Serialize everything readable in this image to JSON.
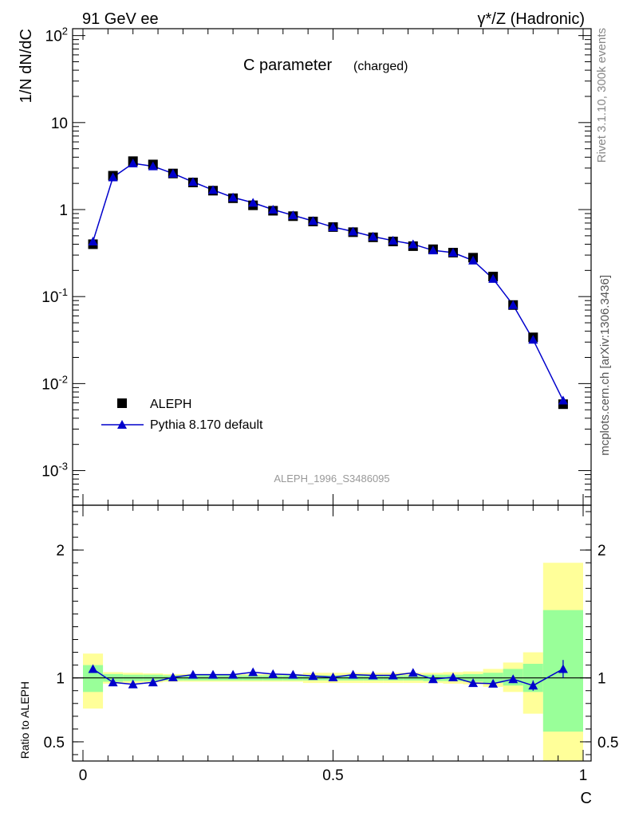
{
  "header": {
    "left": "91 GeV ee",
    "right": "γ*/Z (Hadronic)"
  },
  "side_labels": {
    "rivet": "Rivet 3.1.10,  300k events",
    "mcplots": "mcplots.cern.ch [arXiv:1306.3436]"
  },
  "chart_data": {
    "type": "line",
    "title": "C parameter",
    "title_suffix": "(charged)",
    "analysis_label": "ALEPH_1996_S3486095",
    "ylabel_main": "1/N dN/dC",
    "ylabel_ratio": "Ratio to ALEPH",
    "xlabel": "C",
    "x_ticks": [
      "0",
      "0.5",
      "1"
    ],
    "xlim": [
      0,
      1
    ],
    "main_ylim": [
      0.0004,
      120
    ],
    "main_yscale": "log",
    "main_y_ticks": [
      "10^-3",
      "10^-2",
      "10^-1",
      "1",
      "10",
      "10^2"
    ],
    "ratio_ylim": [
      0.35,
      2.35
    ],
    "ratio_y_ticks": [
      "0.5",
      "1",
      "2"
    ],
    "legend_position": "lower-left",
    "series": [
      {
        "name": "ALEPH",
        "marker": "square",
        "color": "#000000",
        "x": [
          0.02,
          0.06,
          0.1,
          0.14,
          0.18,
          0.22,
          0.26,
          0.3,
          0.34,
          0.38,
          0.42,
          0.46,
          0.5,
          0.54,
          0.58,
          0.62,
          0.66,
          0.7,
          0.74,
          0.78,
          0.82,
          0.86,
          0.9,
          0.96
        ],
        "values": [
          0.4,
          2.45,
          3.6,
          3.3,
          2.6,
          2.05,
          1.65,
          1.35,
          1.12,
          0.97,
          0.84,
          0.73,
          0.63,
          0.55,
          0.48,
          0.43,
          0.38,
          0.35,
          0.32,
          0.28,
          0.17,
          0.08,
          0.034,
          0.0058
        ]
      },
      {
        "name": "Pythia 8.170 default",
        "marker": "triangle",
        "color": "#0000cc",
        "x": [
          0.02,
          0.06,
          0.1,
          0.14,
          0.18,
          0.22,
          0.26,
          0.3,
          0.34,
          0.38,
          0.42,
          0.46,
          0.5,
          0.54,
          0.58,
          0.62,
          0.66,
          0.7,
          0.74,
          0.78,
          0.82,
          0.86,
          0.9,
          0.96
        ],
        "values": [
          0.43,
          2.35,
          3.4,
          3.15,
          2.6,
          2.08,
          1.68,
          1.38,
          1.2,
          1.0,
          0.86,
          0.74,
          0.63,
          0.56,
          0.49,
          0.44,
          0.4,
          0.34,
          0.32,
          0.26,
          0.16,
          0.08,
          0.032,
          0.0064
        ]
      }
    ],
    "ratio": {
      "bins": [
        [
          0.0,
          0.04
        ],
        [
          0.04,
          0.08
        ],
        [
          0.08,
          0.12
        ],
        [
          0.12,
          0.16
        ],
        [
          0.16,
          0.2
        ],
        [
          0.2,
          0.24
        ],
        [
          0.24,
          0.28
        ],
        [
          0.28,
          0.32
        ],
        [
          0.32,
          0.36
        ],
        [
          0.36,
          0.4
        ],
        [
          0.4,
          0.44
        ],
        [
          0.44,
          0.48
        ],
        [
          0.48,
          0.52
        ],
        [
          0.52,
          0.56
        ],
        [
          0.56,
          0.6
        ],
        [
          0.6,
          0.64
        ],
        [
          0.64,
          0.68
        ],
        [
          0.68,
          0.72
        ],
        [
          0.72,
          0.76
        ],
        [
          0.76,
          0.8
        ],
        [
          0.8,
          0.84
        ],
        [
          0.84,
          0.88
        ],
        [
          0.88,
          0.92
        ],
        [
          0.92,
          1.0
        ]
      ],
      "inner_band": [
        [
          0.89,
          1.1
        ],
        [
          0.97,
          1.03
        ],
        [
          0.975,
          1.025
        ],
        [
          0.975,
          1.025
        ],
        [
          0.98,
          1.02
        ],
        [
          0.98,
          1.02
        ],
        [
          0.98,
          1.02
        ],
        [
          0.98,
          1.02
        ],
        [
          0.98,
          1.02
        ],
        [
          0.98,
          1.02
        ],
        [
          0.98,
          1.02
        ],
        [
          0.98,
          1.02
        ],
        [
          0.98,
          1.02
        ],
        [
          0.98,
          1.02
        ],
        [
          0.98,
          1.02
        ],
        [
          0.98,
          1.02
        ],
        [
          0.98,
          1.02
        ],
        [
          0.975,
          1.025
        ],
        [
          0.975,
          1.025
        ],
        [
          0.97,
          1.03
        ],
        [
          0.96,
          1.04
        ],
        [
          0.94,
          1.07
        ],
        [
          0.89,
          1.11
        ],
        [
          0.58,
          1.53
        ]
      ],
      "outer_band": [
        [
          0.76,
          1.19
        ],
        [
          0.955,
          1.045
        ],
        [
          0.96,
          1.04
        ],
        [
          0.965,
          1.035
        ],
        [
          0.97,
          1.03
        ],
        [
          0.97,
          1.03
        ],
        [
          0.97,
          1.03
        ],
        [
          0.97,
          1.03
        ],
        [
          0.97,
          1.03
        ],
        [
          0.97,
          1.03
        ],
        [
          0.97,
          1.03
        ],
        [
          0.96,
          1.04
        ],
        [
          0.96,
          1.04
        ],
        [
          0.96,
          1.04
        ],
        [
          0.96,
          1.04
        ],
        [
          0.96,
          1.04
        ],
        [
          0.96,
          1.04
        ],
        [
          0.96,
          1.04
        ],
        [
          0.955,
          1.045
        ],
        [
          0.95,
          1.05
        ],
        [
          0.93,
          1.07
        ],
        [
          0.89,
          1.12
        ],
        [
          0.72,
          1.2
        ],
        [
          0.35,
          1.9
        ]
      ],
      "mc": {
        "x": [
          0.02,
          0.06,
          0.1,
          0.14,
          0.18,
          0.22,
          0.26,
          0.3,
          0.34,
          0.38,
          0.42,
          0.46,
          0.5,
          0.54,
          0.58,
          0.62,
          0.66,
          0.7,
          0.74,
          0.78,
          0.82,
          0.86,
          0.9,
          0.96
        ],
        "values": [
          1.07,
          0.965,
          0.95,
          0.965,
          1.005,
          1.025,
          1.025,
          1.025,
          1.045,
          1.03,
          1.025,
          1.015,
          1.005,
          1.025,
          1.02,
          1.02,
          1.04,
          0.99,
          1.005,
          0.96,
          0.955,
          0.99,
          0.94,
          1.07
        ],
        "err": [
          0,
          0,
          0,
          0,
          0,
          0,
          0,
          0,
          0,
          0,
          0,
          0,
          0,
          0,
          0,
          0,
          0,
          0,
          0,
          0,
          0,
          0.03,
          0.04,
          0.07
        ]
      }
    }
  }
}
